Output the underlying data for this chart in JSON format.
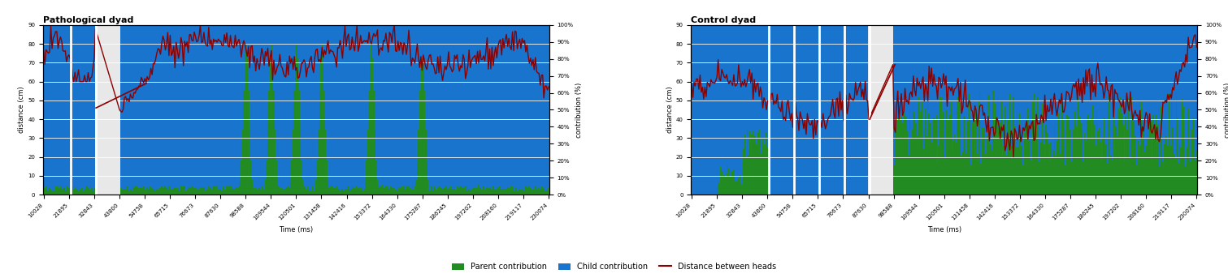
{
  "fig_width": 15.11,
  "fig_height": 3.43,
  "left_title": "Pathological dyad",
  "right_title": "Control dyad",
  "dist_ylabel": "distance (cm)",
  "contrib_ylabel": "contribution (%)",
  "xlabel": "Time (ms)",
  "ylim_dist": [
    0,
    90
  ],
  "yticks_dist": [
    0,
    10,
    20,
    30,
    40,
    50,
    60,
    70,
    80,
    90
  ],
  "yticks_contrib": [
    0.0,
    0.1,
    0.2,
    0.3,
    0.4,
    0.5,
    0.6,
    0.7,
    0.8,
    0.9,
    1.0
  ],
  "ytick_contrib_labels": [
    "0%",
    "10%",
    "20%",
    "30%",
    "40%",
    "50%",
    "60%",
    "70%",
    "80%",
    "90%",
    "100%"
  ],
  "xtick_labels": [
    "10028",
    "21895",
    "32843",
    "43800",
    "54758",
    "65715",
    "76673",
    "87630",
    "98588",
    "109544",
    "120501",
    "131458",
    "142416",
    "153372",
    "164330",
    "175287",
    "186245",
    "197202",
    "208160",
    "219117",
    "230074"
  ],
  "blue_color": "#1874CD",
  "green_color": "#228B22",
  "red_color": "#8B0000",
  "white_color": "#FFFFFF",
  "grid_color": "#DDDDDD"
}
